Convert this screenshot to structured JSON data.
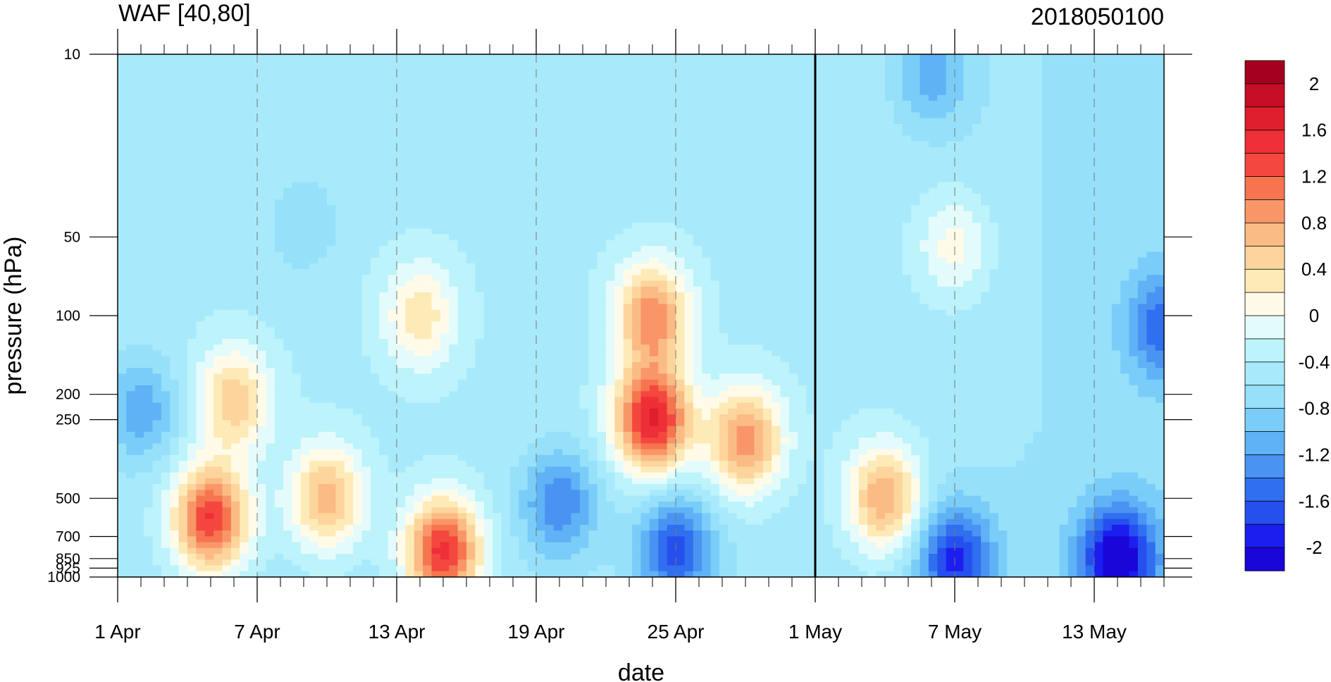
{
  "chart_data": {
    "type": "contour",
    "title": "WAF [40,80]",
    "time_label": "2018050100",
    "xlabel": "date",
    "ylabel": "pressure (hPa)",
    "x_range": [
      "2018-04-01",
      "2018-05-16"
    ],
    "x_ticks": [
      "1 Apr",
      "7 Apr",
      "13 Apr",
      "19 Apr",
      "25 Apr",
      "1 May",
      "7 May",
      "13 May"
    ],
    "x_tick_dates": [
      "2018-04-01",
      "2018-04-07",
      "2018-04-13",
      "2018-04-19",
      "2018-04-25",
      "2018-05-01",
      "2018-05-07",
      "2018-05-13"
    ],
    "y_scale": "log",
    "y_range": [
      1000,
      10
    ],
    "y_ticks": [
      "10",
      "50",
      "100",
      "200",
      "250",
      "500",
      "700",
      "850",
      "925",
      "1000"
    ],
    "y_tick_values": [
      10,
      50,
      100,
      200,
      250,
      500,
      700,
      850,
      925,
      1000
    ],
    "reference_line_date": "2018-05-01",
    "grid": "dashed vertical lines at date ticks",
    "colorbar": {
      "placement": "right",
      "labels": [
        "2",
        "1.6",
        "1.2",
        "0.8",
        "0.4",
        "0",
        "-0.4",
        "-0.8",
        "-1.2",
        "-1.6",
        "-2"
      ],
      "label_values": [
        2,
        1.6,
        1.2,
        0.8,
        0.4,
        0,
        -0.4,
        -0.8,
        -1.2,
        -1.6,
        -2
      ],
      "levels": [
        -2.2,
        -2.0,
        -1.8,
        -1.6,
        -1.4,
        -1.2,
        -1.0,
        -0.8,
        -0.6,
        -0.4,
        -0.2,
        0.0,
        0.2,
        0.4,
        0.6,
        0.8,
        1.0,
        1.2,
        1.4,
        1.6,
        1.8,
        2.0,
        2.2
      ],
      "colors": [
        "#1a06d9",
        "#1c1ef0",
        "#2650ee",
        "#2f6ff0",
        "#4a93f2",
        "#5eb2f5",
        "#7acdf8",
        "#96e0fa",
        "#a8eafb",
        "#bdf3fb",
        "#e4fbfc",
        "#fffbe8",
        "#fdeab7",
        "#fcd49c",
        "#fbbb84",
        "#f99668",
        "#f6754e",
        "#f4473f",
        "#ee2f37",
        "#df1f2e",
        "#c60f26",
        "#a5001f"
      ]
    },
    "features": [
      {
        "date": "2018-04-05",
        "pressure": 600,
        "value": 1.5
      },
      {
        "date": "2018-04-06",
        "pressure": 210,
        "value": 0.6
      },
      {
        "date": "2018-04-10",
        "pressure": 500,
        "value": 0.8
      },
      {
        "date": "2018-04-15",
        "pressure": 800,
        "value": 1.6
      },
      {
        "date": "2018-04-14",
        "pressure": 100,
        "value": 0.4
      },
      {
        "date": "2018-04-24",
        "pressure": 250,
        "value": 1.7
      },
      {
        "date": "2018-04-24",
        "pressure": 100,
        "value": 1.0
      },
      {
        "date": "2018-04-28",
        "pressure": 300,
        "value": 1.0
      },
      {
        "date": "2018-05-04",
        "pressure": 500,
        "value": 0.9
      },
      {
        "date": "2018-05-07",
        "pressure": 55,
        "value": 0.2
      },
      {
        "date": "2018-05-14",
        "pressure": 850,
        "value": -2.0
      },
      {
        "date": "2018-05-07",
        "pressure": 850,
        "value": -1.7
      },
      {
        "date": "2018-04-25",
        "pressure": 780,
        "value": -1.6
      },
      {
        "date": "2018-04-20",
        "pressure": 520,
        "value": -1.3
      },
      {
        "date": "2018-04-02",
        "pressure": 230,
        "value": -1.1
      },
      {
        "date": "2018-05-16",
        "pressure": 110,
        "value": -1.3
      },
      {
        "date": "2018-04-09",
        "pressure": 45,
        "value": -0.7
      },
      {
        "date": "2018-05-06",
        "pressure": 12,
        "value": -1.0
      }
    ]
  }
}
